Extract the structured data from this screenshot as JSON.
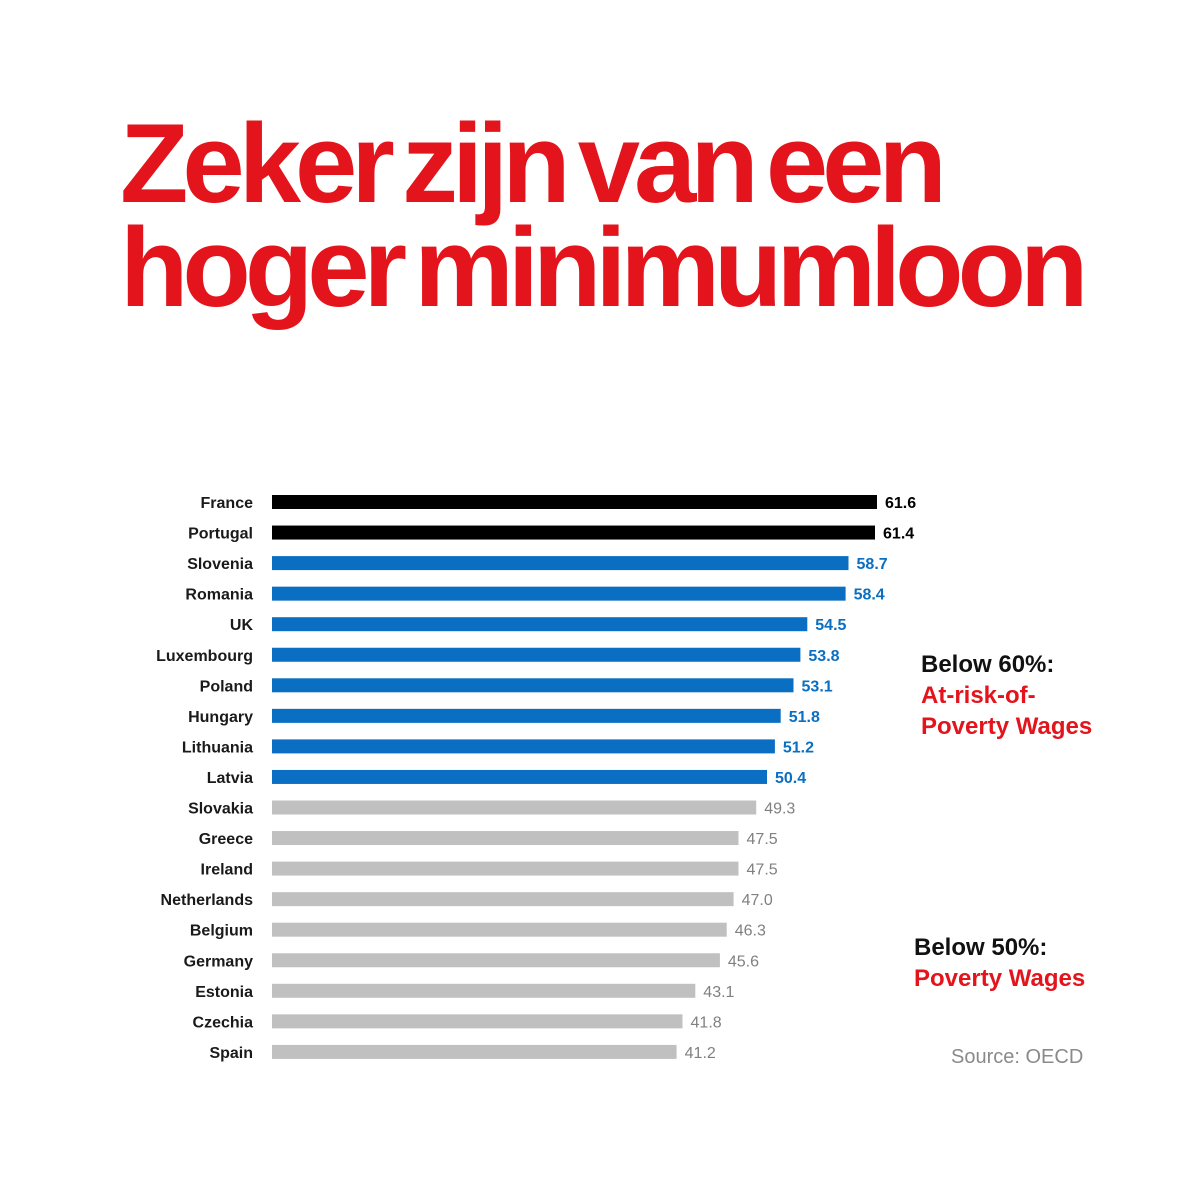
{
  "headline": {
    "line1": "Zeker zijn van een",
    "line2": "hoger minimumloon"
  },
  "annotations": {
    "below60_title": "Below 60%:",
    "below60_line1": "At-risk-of-",
    "below60_line2": "Poverty Wages",
    "below50_title": "Below 50%:",
    "below50_line1": "Poverty Wages"
  },
  "source": "Source: OECD",
  "colors": {
    "headline": "#e3141c",
    "above60": "#000000",
    "between50and60": "#0a6fc2",
    "below50": "#c0c0c0",
    "below50_label": "#808080"
  },
  "chart_data": {
    "type": "bar",
    "orientation": "horizontal",
    "title": "",
    "xlabel": "",
    "ylabel": "",
    "categories": [
      "France",
      "Portugal",
      "Slovenia",
      "Romania",
      "UK",
      "Luxembourg",
      "Poland",
      "Hungary",
      "Lithuania",
      "Latvia",
      "Slovakia",
      "Greece",
      "Ireland",
      "Netherlands",
      "Belgium",
      "Germany",
      "Estonia",
      "Czechia",
      "Spain"
    ],
    "values": [
      61.6,
      61.4,
      58.7,
      58.4,
      54.5,
      53.8,
      53.1,
      51.8,
      51.2,
      50.4,
      49.3,
      47.5,
      47.5,
      47.0,
      46.3,
      45.6,
      43.1,
      41.8,
      41.2
    ],
    "value_labels": [
      "61.6",
      "61.4",
      "58.7",
      "58.4",
      "54.5",
      "53.8",
      "53.1",
      "51.8",
      "51.2",
      "50.4",
      "49.3",
      "47.5",
      "47.5",
      "47.0",
      "46.3",
      "45.6",
      "43.1",
      "41.8",
      "41.2"
    ],
    "xlim": [
      0,
      61.6
    ],
    "grid": false,
    "legend": false
  }
}
